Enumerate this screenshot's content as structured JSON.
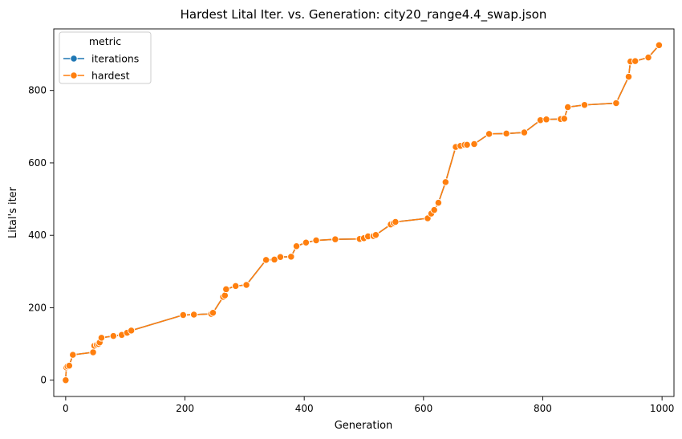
{
  "chart_data": {
    "type": "line",
    "title": "Hardest Lital Iter. vs. Generation: city20_range4.4_swap.json",
    "xlabel": "Generation",
    "ylabel": "Lital's iter",
    "xlim": [
      -20,
      1020
    ],
    "ylim": [
      -45,
      970
    ],
    "xticks": [
      0,
      200,
      400,
      600,
      800,
      1000
    ],
    "yticks": [
      0,
      200,
      400,
      600,
      800
    ],
    "grid": false,
    "legend": {
      "title": "metric",
      "placement": "top-left",
      "entries": [
        "iterations",
        "hardest"
      ]
    },
    "colors": {
      "iterations": "#1f77b4",
      "hardest": "#ff7f0e"
    },
    "series": [
      {
        "name": "iterations",
        "x": [
          0,
          1,
          3,
          6,
          12,
          46,
          48,
          52,
          55,
          57,
          60,
          80,
          94,
          103,
          110,
          197,
          215,
          244,
          247,
          264,
          267,
          269,
          285,
          303,
          336,
          350,
          360,
          378,
          387,
          403,
          420,
          452,
          493,
          500,
          507,
          516,
          520,
          545,
          550,
          553,
          607,
          613,
          618,
          625,
          637,
          654,
          662,
          669,
          673,
          685,
          710,
          739,
          769,
          796,
          806,
          830,
          836,
          842,
          870,
          923,
          944,
          947,
          955,
          977,
          995
        ],
        "y": [
          0,
          35,
          38,
          40,
          70,
          77,
          95,
          98,
          100,
          104,
          117,
          122,
          125,
          131,
          137,
          180,
          181,
          183,
          186,
          230,
          234,
          251,
          260,
          263,
          332,
          333,
          340,
          341,
          370,
          380,
          386,
          389,
          390,
          392,
          397,
          398,
          401,
          430,
          434,
          437,
          447,
          460,
          470,
          490,
          547,
          644,
          647,
          650,
          650,
          652,
          680,
          681,
          684,
          718,
          720,
          721,
          722,
          754,
          760,
          765,
          838,
          880,
          881,
          891,
          925
        ]
      },
      {
        "name": "hardest",
        "x": [
          0,
          1,
          3,
          6,
          12,
          46,
          48,
          52,
          55,
          57,
          60,
          80,
          94,
          103,
          110,
          197,
          215,
          244,
          247,
          264,
          267,
          269,
          285,
          303,
          336,
          350,
          360,
          378,
          387,
          403,
          420,
          452,
          493,
          500,
          507,
          516,
          520,
          545,
          550,
          553,
          607,
          613,
          618,
          625,
          637,
          654,
          662,
          669,
          673,
          685,
          710,
          739,
          769,
          796,
          806,
          830,
          836,
          842,
          870,
          923,
          944,
          947,
          955,
          977,
          995
        ],
        "y": [
          0,
          35,
          38,
          40,
          70,
          77,
          95,
          98,
          100,
          104,
          117,
          122,
          125,
          131,
          137,
          180,
          181,
          183,
          186,
          230,
          234,
          251,
          260,
          263,
          332,
          333,
          340,
          341,
          370,
          380,
          386,
          389,
          390,
          392,
          397,
          398,
          401,
          430,
          434,
          437,
          447,
          460,
          470,
          490,
          547,
          644,
          647,
          650,
          650,
          652,
          680,
          681,
          684,
          718,
          720,
          721,
          722,
          754,
          760,
          765,
          838,
          880,
          881,
          891,
          925
        ]
      }
    ]
  }
}
